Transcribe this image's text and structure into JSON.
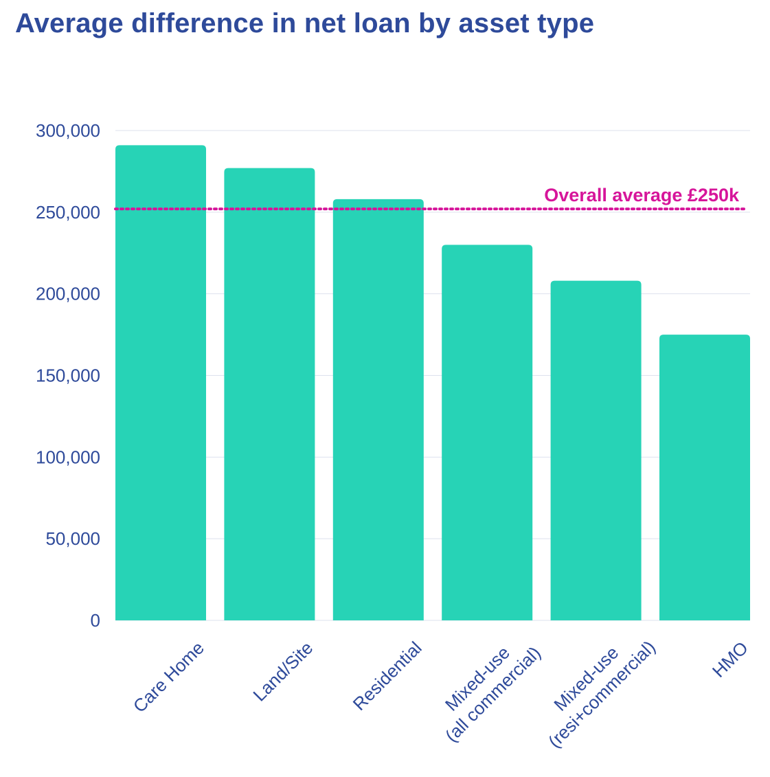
{
  "chart_data": {
    "type": "bar",
    "title": "Average difference in net loan by asset type",
    "xlabel": "",
    "ylabel": "",
    "categories": [
      "Care Home",
      "Land/Site",
      "Residential",
      "Mixed-use\n(all commercial)",
      "Mixed-use\n(resi+commercial)",
      "HMO"
    ],
    "values": [
      291000,
      277000,
      258000,
      230000,
      208000,
      175000
    ],
    "ylim": [
      0,
      300000
    ],
    "yticks": [
      0,
      50000,
      100000,
      150000,
      200000,
      250000,
      300000
    ],
    "ytick_labels": [
      "0",
      "50,000",
      "100,000",
      "150,000",
      "200,000",
      "250,000",
      "300,000"
    ],
    "grid": true,
    "legend": "none",
    "reference_line": {
      "value": 252000,
      "label": "Overall average £250k",
      "style": "dotted"
    },
    "colors": {
      "bar": "#27d3b6",
      "reference": "#d6159a",
      "text": "#2e4a9a",
      "grid": "#dde1ee"
    }
  }
}
